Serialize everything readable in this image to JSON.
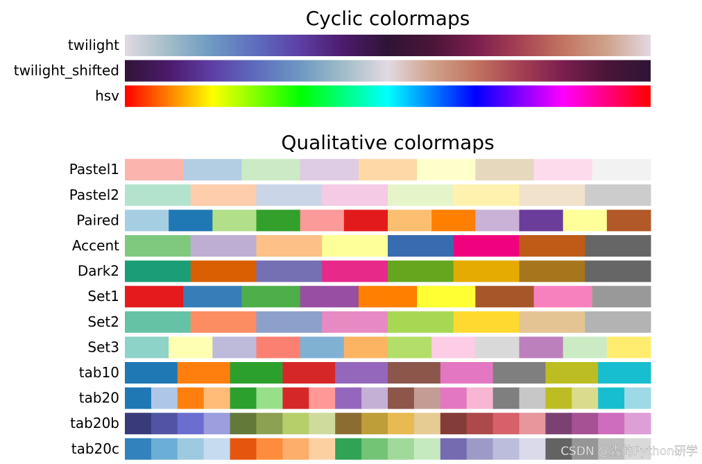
{
  "sections": [
    {
      "title": "Cyclic colormaps",
      "kind": "continuous",
      "colormaps": [
        {
          "name": "twilight",
          "colors": [
            "#e2d9e2",
            "#a1bdc8",
            "#6d98c2",
            "#5e6cbe",
            "#5d3fa5",
            "#4c1a6b",
            "#2f1436",
            "#4a1538",
            "#7b1e4e",
            "#a64153",
            "#c27460",
            "#cfa28b",
            "#e2d9e2"
          ]
        },
        {
          "name": "twilight_shifted",
          "colors": [
            "#2f1436",
            "#4c1a6b",
            "#5d3fa5",
            "#5e6cbe",
            "#6d98c2",
            "#a1bdc8",
            "#e2d9e2",
            "#cfa28b",
            "#c27460",
            "#a64153",
            "#7b1e4e",
            "#4a1538",
            "#2f1436"
          ]
        },
        {
          "name": "hsv",
          "colors": [
            "#ff0000",
            "#ffff00",
            "#00ff00",
            "#00ffff",
            "#0000ff",
            "#ff00ff",
            "#ff0000"
          ]
        }
      ]
    },
    {
      "title": "Qualitative colormaps",
      "kind": "listed",
      "colormaps": [
        {
          "name": "Pastel1",
          "colors": [
            "#fbb4ae",
            "#b3cde3",
            "#ccebc5",
            "#decbe4",
            "#fed9a6",
            "#ffffcc",
            "#e5d8bd",
            "#fddaec",
            "#f2f2f2"
          ]
        },
        {
          "name": "Pastel2",
          "colors": [
            "#b3e2cd",
            "#fdcdac",
            "#cbd5e8",
            "#f4cae4",
            "#e6f5c9",
            "#fff2ae",
            "#f1e2cc",
            "#cccccc"
          ]
        },
        {
          "name": "Paired",
          "colors": [
            "#a6cee3",
            "#1f78b4",
            "#b2df8a",
            "#33a02c",
            "#fb9a99",
            "#e31a1c",
            "#fdbf6f",
            "#ff7f00",
            "#cab2d6",
            "#6a3d9a",
            "#ffff99",
            "#b15928"
          ]
        },
        {
          "name": "Accent",
          "colors": [
            "#7fc97f",
            "#beaed4",
            "#fdc086",
            "#ffff99",
            "#386cb0",
            "#f0027f",
            "#bf5b17",
            "#666666"
          ]
        },
        {
          "name": "Dark2",
          "colors": [
            "#1b9e77",
            "#d95f02",
            "#7570b3",
            "#e7298a",
            "#66a61e",
            "#e6ab02",
            "#a6761d",
            "#666666"
          ]
        },
        {
          "name": "Set1",
          "colors": [
            "#e41a1c",
            "#377eb8",
            "#4daf4a",
            "#984ea3",
            "#ff7f00",
            "#ffff33",
            "#a65628",
            "#f781bf",
            "#999999"
          ]
        },
        {
          "name": "Set2",
          "colors": [
            "#66c2a5",
            "#fc8d62",
            "#8da0cb",
            "#e78ac3",
            "#a6d854",
            "#ffd92f",
            "#e5c494",
            "#b3b3b3"
          ]
        },
        {
          "name": "Set3",
          "colors": [
            "#8dd3c7",
            "#ffffb3",
            "#bebada",
            "#fb8072",
            "#80b1d3",
            "#fdb462",
            "#b3de69",
            "#fccde5",
            "#d9d9d9",
            "#bc80bd",
            "#ccebc5",
            "#ffed6f"
          ]
        },
        {
          "name": "tab10",
          "colors": [
            "#1f77b4",
            "#ff7f0e",
            "#2ca02c",
            "#d62728",
            "#9467bd",
            "#8c564b",
            "#e377c2",
            "#7f7f7f",
            "#bcbd22",
            "#17becf"
          ]
        },
        {
          "name": "tab20",
          "colors": [
            "#1f77b4",
            "#aec7e8",
            "#ff7f0e",
            "#ffbb78",
            "#2ca02c",
            "#98df8a",
            "#d62728",
            "#ff9896",
            "#9467bd",
            "#c5b0d5",
            "#8c564b",
            "#c49c94",
            "#e377c2",
            "#f7b6d2",
            "#7f7f7f",
            "#c7c7c7",
            "#bcbd22",
            "#dbdb8d",
            "#17becf",
            "#9edae5"
          ]
        },
        {
          "name": "tab20b",
          "colors": [
            "#393b79",
            "#5254a3",
            "#6b6ecf",
            "#9c9ede",
            "#637939",
            "#8ca252",
            "#b5cf6b",
            "#cedb9c",
            "#8c6d31",
            "#bd9e39",
            "#e7ba52",
            "#e7cb94",
            "#843c39",
            "#ad494a",
            "#d6616b",
            "#e7969c",
            "#7b4173",
            "#a55194",
            "#ce6dbd",
            "#de9ed6"
          ]
        },
        {
          "name": "tab20c",
          "colors": [
            "#3182bd",
            "#6baed6",
            "#9ecae1",
            "#c6dbef",
            "#e6550d",
            "#fd8d3c",
            "#fdae6b",
            "#fdd0a2",
            "#31a354",
            "#74c476",
            "#a1d99b",
            "#c7e9c0",
            "#756bb1",
            "#9e9ac8",
            "#bcbddc",
            "#dadaeb",
            "#636363",
            "#969696",
            "#bdbdbd",
            "#d9d9d9"
          ]
        }
      ]
    }
  ],
  "watermark": "CSDN @淼的Python研学"
}
